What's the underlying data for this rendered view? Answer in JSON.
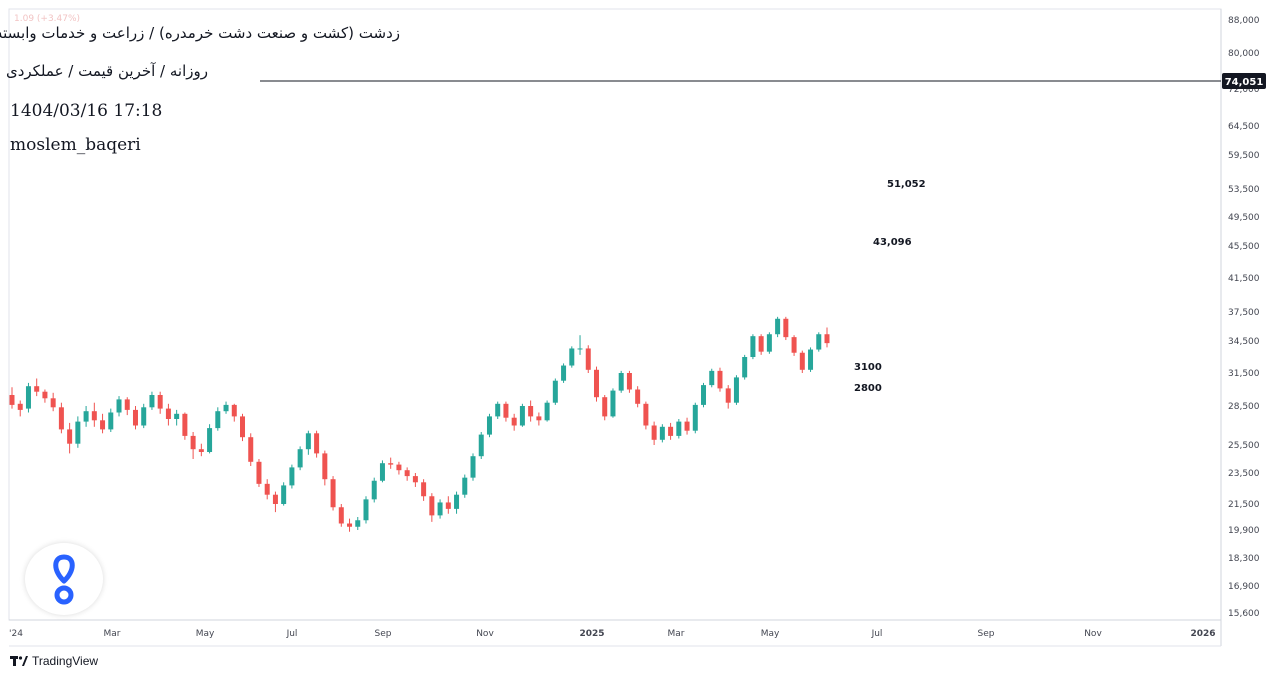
{
  "header": {
    "title": "زدشت (کشت و صنعت دشت خرمدره) / زراعت و خدمات وابسته",
    "subtitle": "روزانه / آخرین قیمت / عملکردی",
    "datetime": "1404/03/16 17:18",
    "user": "moslem_baqeri",
    "faint_line": "1.09 (+3.47%)"
  },
  "brand": {
    "name": "TradingView",
    "icon": "tradingview-logo-icon"
  },
  "logo": {
    "icon": "blue-loop-logo-icon",
    "color": "#2962ff"
  },
  "colors": {
    "up": "#26a69a",
    "down": "#ef5350",
    "grid": "#e0e3eb",
    "text": "#131722",
    "last_price_bg": "#131722"
  },
  "chart_data": {
    "type": "candlestick",
    "y_ticks": [
      "88,000",
      "80,000",
      "72,000",
      "64,500",
      "59,500",
      "53,500",
      "49,500",
      "45,500",
      "41,500",
      "37,500",
      "34,500",
      "31,500",
      "28,500",
      "25,500",
      "23,500",
      "21,500",
      "19,900",
      "18,300",
      "16,900",
      "15,600"
    ],
    "x_ticks": [
      "'24",
      "Mar",
      "May",
      "Jul",
      "Sep",
      "Nov",
      "2025",
      "Mar",
      "May",
      "Jul",
      "Sep",
      "Nov",
      "2026"
    ],
    "last_price": "74,051",
    "annotations": [
      "51,052",
      "43,096",
      "3100",
      "2800"
    ],
    "candles": [
      [
        29500,
        30200,
        28300,
        28600
      ],
      [
        28700,
        29000,
        27700,
        28200
      ],
      [
        28300,
        30600,
        28000,
        30300
      ],
      [
        30300,
        31000,
        29400,
        29800
      ],
      [
        29800,
        30000,
        28800,
        29200
      ],
      [
        29200,
        29700,
        28100,
        28400
      ],
      [
        28400,
        28800,
        26400,
        26700
      ],
      [
        26700,
        27200,
        24900,
        25600
      ],
      [
        25600,
        27700,
        25300,
        27300
      ],
      [
        27300,
        28500,
        26900,
        28100
      ],
      [
        28100,
        28800,
        26900,
        27400
      ],
      [
        27400,
        27900,
        26400,
        26700
      ],
      [
        26700,
        28300,
        26500,
        28000
      ],
      [
        28000,
        29400,
        27700,
        29100
      ],
      [
        29100,
        29300,
        27800,
        28200
      ],
      [
        28200,
        28500,
        26700,
        27000
      ],
      [
        27000,
        28700,
        26800,
        28400
      ],
      [
        28400,
        29800,
        28200,
        29500
      ],
      [
        29500,
        29800,
        27900,
        28300
      ],
      [
        28300,
        28700,
        27000,
        27500
      ],
      [
        27500,
        28200,
        27000,
        27900
      ],
      [
        27900,
        28000,
        25900,
        26200
      ],
      [
        26200,
        26500,
        24500,
        25200
      ],
      [
        25200,
        25600,
        24700,
        25000
      ],
      [
        25000,
        27100,
        24900,
        26800
      ],
      [
        26800,
        28400,
        26600,
        28100
      ],
      [
        28100,
        28900,
        27900,
        28600
      ],
      [
        28600,
        28700,
        27300,
        27700
      ],
      [
        27700,
        27900,
        25800,
        26100
      ],
      [
        26100,
        26400,
        24000,
        24300
      ],
      [
        24300,
        24500,
        22600,
        22800
      ],
      [
        22800,
        23100,
        21800,
        22100
      ],
      [
        22100,
        22300,
        21000,
        21500
      ],
      [
        21500,
        22900,
        21400,
        22700
      ],
      [
        22700,
        24100,
        22500,
        23900
      ],
      [
        23900,
        25400,
        23700,
        25200
      ],
      [
        25200,
        26600,
        24800,
        26400
      ],
      [
        26400,
        26600,
        24600,
        24900
      ],
      [
        24900,
        25100,
        22700,
        23100
      ],
      [
        23100,
        23300,
        21100,
        21300
      ],
      [
        21300,
        21500,
        20100,
        20300
      ],
      [
        20300,
        20600,
        19800,
        20100
      ],
      [
        20100,
        20700,
        19900,
        20500
      ],
      [
        20500,
        22000,
        20300,
        21800
      ],
      [
        21800,
        23200,
        21600,
        23000
      ],
      [
        23000,
        24400,
        22900,
        24200
      ],
      [
        24200,
        24600,
        23800,
        24100
      ],
      [
        24100,
        24300,
        23400,
        23700
      ],
      [
        23700,
        23900,
        23000,
        23300
      ],
      [
        23300,
        23500,
        22600,
        22900
      ],
      [
        22900,
        23100,
        21700,
        22000
      ],
      [
        22000,
        22200,
        20400,
        20800
      ],
      [
        20800,
        21800,
        20600,
        21600
      ],
      [
        21600,
        22000,
        20900,
        21200
      ],
      [
        21200,
        22300,
        20900,
        22100
      ],
      [
        22100,
        23400,
        21900,
        23200
      ],
      [
        23200,
        24900,
        23000,
        24700
      ],
      [
        24700,
        26500,
        24500,
        26300
      ],
      [
        26300,
        27900,
        26100,
        27700
      ],
      [
        27700,
        28900,
        27500,
        28700
      ],
      [
        28700,
        28900,
        27300,
        27600
      ],
      [
        27600,
        27900,
        26600,
        27000
      ],
      [
        27000,
        28700,
        26900,
        28500
      ],
      [
        28500,
        29000,
        27300,
        27700
      ],
      [
        27700,
        28000,
        27000,
        27400
      ],
      [
        27400,
        29000,
        27300,
        28800
      ],
      [
        28800,
        31000,
        28600,
        30800
      ],
      [
        30800,
        32400,
        30600,
        32200
      ],
      [
        32200,
        34000,
        32000,
        33800
      ],
      [
        33800,
        35100,
        33200,
        33800
      ],
      [
        33800,
        34100,
        31500,
        31800
      ],
      [
        31800,
        32100,
        28900,
        29300
      ],
      [
        29300,
        29500,
        27400,
        27700
      ],
      [
        27700,
        30100,
        27600,
        29900
      ],
      [
        29900,
        31700,
        29700,
        31500
      ],
      [
        31500,
        31700,
        29700,
        30000
      ],
      [
        30000,
        30300,
        28400,
        28700
      ],
      [
        28700,
        28900,
        26700,
        27000
      ],
      [
        27000,
        27300,
        25500,
        25900
      ],
      [
        25900,
        27100,
        25700,
        26900
      ],
      [
        26900,
        27200,
        25900,
        26200
      ],
      [
        26200,
        27500,
        26000,
        27300
      ],
      [
        27300,
        27600,
        26300,
        26600
      ],
      [
        26600,
        28800,
        26400,
        28600
      ],
      [
        28600,
        30600,
        28400,
        30400
      ],
      [
        30400,
        31900,
        30200,
        31700
      ],
      [
        31700,
        32000,
        29800,
        30100
      ],
      [
        30100,
        30400,
        28300,
        28800
      ],
      [
        28800,
        31300,
        28600,
        31100
      ],
      [
        31100,
        33200,
        30900,
        33000
      ],
      [
        33000,
        35200,
        32800,
        35000
      ],
      [
        35000,
        35200,
        33200,
        33500
      ],
      [
        33500,
        35400,
        33300,
        35200
      ],
      [
        35200,
        37000,
        34900,
        36800
      ],
      [
        36800,
        37000,
        34600,
        34900
      ],
      [
        34900,
        35100,
        33100,
        33400
      ],
      [
        33400,
        33600,
        31500,
        31800
      ],
      [
        31800,
        33900,
        31600,
        33700
      ],
      [
        33700,
        35400,
        33500,
        35200
      ],
      [
        35200,
        35900,
        33900,
        34300
      ]
    ]
  }
}
